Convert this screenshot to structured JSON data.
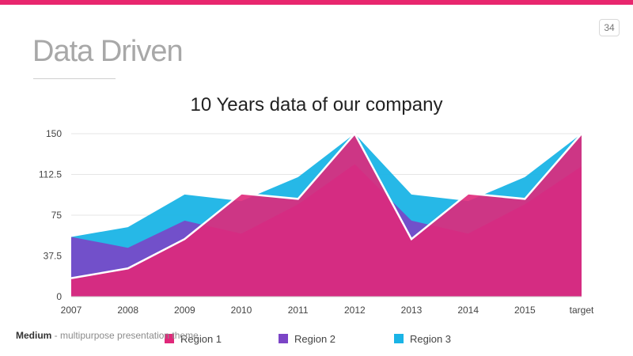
{
  "slide": {
    "title": "Data Driven",
    "page_number": "34",
    "footer_brand": "Medium",
    "footer_text": " - multipurpose presentation theme"
  },
  "colors": {
    "accent": "#e8266e",
    "region1": "#e0287a",
    "region2": "#7b45c6",
    "region3": "#1ab4e6"
  },
  "chart_data": {
    "type": "area",
    "title": "10 Years data of our company",
    "categories": [
      "2007",
      "2008",
      "2009",
      "2010",
      "2011",
      "2012",
      "2013",
      "2014",
      "2015",
      "target"
    ],
    "y_ticks": [
      "0",
      "37.5",
      "75",
      "112.5",
      "150"
    ],
    "ylim": [
      0,
      150
    ],
    "grid": true,
    "legend_position": "bottom",
    "series": [
      {
        "name": "Region 1",
        "values": [
          17,
          26,
          53,
          95,
          90,
          150,
          53,
          95,
          90,
          150
        ]
      },
      {
        "name": "Region 2",
        "values": [
          55,
          45,
          70,
          58,
          85,
          122,
          70,
          58,
          85,
          120
        ]
      },
      {
        "name": "Region 3",
        "values": [
          55,
          64,
          94,
          88,
          110,
          150,
          94,
          88,
          110,
          150
        ]
      }
    ]
  }
}
